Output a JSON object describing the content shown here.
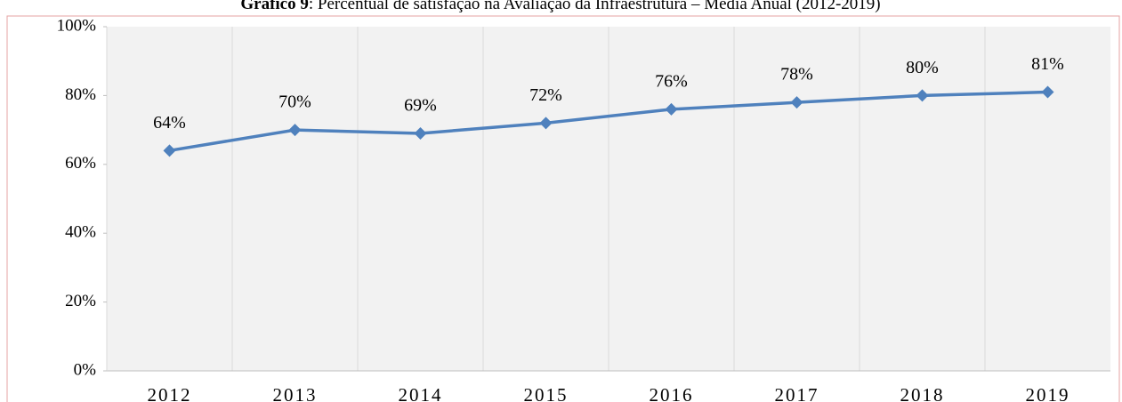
{
  "chart_data": {
    "type": "line",
    "title_prefix": "Gráfico 9",
    "title": ": Percentual de satisfação na Avaliação da Infraestrutura – Média Anual (2012-2019)",
    "categories": [
      "2012",
      "2013",
      "2014",
      "2015",
      "2016",
      "2017",
      "2018",
      "2019"
    ],
    "series": [
      {
        "name": "Média Anual",
        "color": "#4f81bd",
        "values": [
          64,
          70,
          69,
          72,
          76,
          78,
          80,
          81
        ],
        "value_labels": [
          "64%",
          "70%",
          "69%",
          "72%",
          "76%",
          "78%",
          "80%",
          "81%"
        ]
      }
    ],
    "ylim": [
      0,
      100
    ],
    "yticks": [
      {
        "value": 0,
        "label": "0%"
      },
      {
        "value": 20,
        "label": "20%"
      },
      {
        "value": 40,
        "label": "40%"
      },
      {
        "value": 60,
        "label": "60%"
      },
      {
        "value": 80,
        "label": "80%"
      },
      {
        "value": 100,
        "label": "100%"
      }
    ],
    "grid": "x"
  }
}
